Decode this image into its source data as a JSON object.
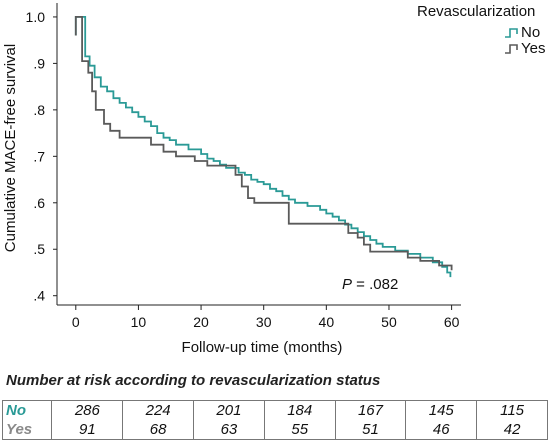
{
  "chart_data": {
    "type": "line",
    "step": true,
    "ylabel": "Cumulative MACE-free survival",
    "xlabel": "Follow-up time (months)",
    "xlim": [
      -3,
      61.5
    ],
    "ylim": [
      0.38,
      1.03
    ],
    "xticks": [
      0,
      10,
      20,
      30,
      40,
      50,
      60
    ],
    "xtick_labels": [
      "0",
      "10",
      "20",
      "30",
      "40",
      "50",
      "60"
    ],
    "yticks": [
      1.0,
      0.9,
      0.8,
      0.7,
      0.6,
      0.5,
      0.4
    ],
    "ytick_labels": [
      "1.0",
      ".9",
      ".8",
      ".7",
      ".6",
      ".5",
      ".4"
    ],
    "legend": {
      "title": "Revascularization",
      "position": "top-right"
    },
    "annotation": {
      "p_symbol": "P",
      "text": " = .082"
    },
    "series": [
      {
        "name": "No",
        "color": "#2a9a96",
        "points": [
          [
            0,
            0.96
          ],
          [
            0,
            1.0
          ],
          [
            1.5,
            1.0
          ],
          [
            1.5,
            0.915
          ],
          [
            2.2,
            0.915
          ],
          [
            2.2,
            0.895
          ],
          [
            3.0,
            0.895
          ],
          [
            3.0,
            0.87
          ],
          [
            4.0,
            0.87
          ],
          [
            4.0,
            0.85
          ],
          [
            5.0,
            0.85
          ],
          [
            5.0,
            0.84
          ],
          [
            6.0,
            0.84
          ],
          [
            6.0,
            0.825
          ],
          [
            7.0,
            0.825
          ],
          [
            7.0,
            0.815
          ],
          [
            8.0,
            0.815
          ],
          [
            8.0,
            0.805
          ],
          [
            9.0,
            0.805
          ],
          [
            9.0,
            0.795
          ],
          [
            10.0,
            0.795
          ],
          [
            10.0,
            0.785
          ],
          [
            11.0,
            0.785
          ],
          [
            11.0,
            0.775
          ],
          [
            12.0,
            0.775
          ],
          [
            12.0,
            0.765
          ],
          [
            13.0,
            0.765
          ],
          [
            13.0,
            0.75
          ],
          [
            14.0,
            0.75
          ],
          [
            14.0,
            0.74
          ],
          [
            15.0,
            0.74
          ],
          [
            15.0,
            0.735
          ],
          [
            16.0,
            0.735
          ],
          [
            16.0,
            0.725
          ],
          [
            18.0,
            0.725
          ],
          [
            18.0,
            0.715
          ],
          [
            20.0,
            0.715
          ],
          [
            20.0,
            0.705
          ],
          [
            21.0,
            0.705
          ],
          [
            21.0,
            0.695
          ],
          [
            22.0,
            0.695
          ],
          [
            22.0,
            0.69
          ],
          [
            23.0,
            0.69
          ],
          [
            23.0,
            0.682
          ],
          [
            24.0,
            0.682
          ],
          [
            24.0,
            0.675
          ],
          [
            26.0,
            0.675
          ],
          [
            26.0,
            0.665
          ],
          [
            27.0,
            0.665
          ],
          [
            27.0,
            0.66
          ],
          [
            28.0,
            0.66
          ],
          [
            28.0,
            0.65
          ],
          [
            29.0,
            0.65
          ],
          [
            29.0,
            0.645
          ],
          [
            30.0,
            0.645
          ],
          [
            30.0,
            0.64
          ],
          [
            31.0,
            0.64
          ],
          [
            31.0,
            0.63
          ],
          [
            32.0,
            0.63
          ],
          [
            32.0,
            0.625
          ],
          [
            33.0,
            0.625
          ],
          [
            33.0,
            0.615
          ],
          [
            34.0,
            0.615
          ],
          [
            34.0,
            0.607
          ],
          [
            35.0,
            0.607
          ],
          [
            35.0,
            0.6
          ],
          [
            37.0,
            0.6
          ],
          [
            37.0,
            0.593
          ],
          [
            39.0,
            0.593
          ],
          [
            39.0,
            0.585
          ],
          [
            40.0,
            0.585
          ],
          [
            40.0,
            0.577
          ],
          [
            41.0,
            0.577
          ],
          [
            41.0,
            0.57
          ],
          [
            42.0,
            0.57
          ],
          [
            42.0,
            0.562
          ],
          [
            43.0,
            0.562
          ],
          [
            43.0,
            0.553
          ],
          [
            44.0,
            0.553
          ],
          [
            44.0,
            0.545
          ],
          [
            45.0,
            0.545
          ],
          [
            45.0,
            0.537
          ],
          [
            46.0,
            0.537
          ],
          [
            46.0,
            0.528
          ],
          [
            47.0,
            0.528
          ],
          [
            47.0,
            0.52
          ],
          [
            48.0,
            0.52
          ],
          [
            48.0,
            0.512
          ],
          [
            49.0,
            0.512
          ],
          [
            49.0,
            0.505
          ],
          [
            51.0,
            0.505
          ],
          [
            51.0,
            0.497
          ],
          [
            53.0,
            0.497
          ],
          [
            53.0,
            0.49
          ],
          [
            55.0,
            0.49
          ],
          [
            55.0,
            0.482
          ],
          [
            57.0,
            0.482
          ],
          [
            57.0,
            0.472
          ],
          [
            58.5,
            0.472
          ],
          [
            58.5,
            0.462
          ],
          [
            59.3,
            0.462
          ],
          [
            59.3,
            0.45
          ],
          [
            59.8,
            0.45
          ],
          [
            59.8,
            0.44
          ]
        ]
      },
      {
        "name": "Yes",
        "color": "#5a5a5a",
        "points": [
          [
            0,
            0.96
          ],
          [
            0,
            1.0
          ],
          [
            1.0,
            1.0
          ],
          [
            1.0,
            0.905
          ],
          [
            2.0,
            0.905
          ],
          [
            2.0,
            0.88
          ],
          [
            2.6,
            0.88
          ],
          [
            2.6,
            0.84
          ],
          [
            3.2,
            0.84
          ],
          [
            3.2,
            0.8
          ],
          [
            4.5,
            0.8
          ],
          [
            4.5,
            0.77
          ],
          [
            5.5,
            0.77
          ],
          [
            5.5,
            0.755
          ],
          [
            7.0,
            0.755
          ],
          [
            7.0,
            0.74
          ],
          [
            12.0,
            0.74
          ],
          [
            12.0,
            0.725
          ],
          [
            14.0,
            0.725
          ],
          [
            14.0,
            0.71
          ],
          [
            16.0,
            0.71
          ],
          [
            16.0,
            0.7
          ],
          [
            19.0,
            0.7
          ],
          [
            19.0,
            0.69
          ],
          [
            21.0,
            0.69
          ],
          [
            21.0,
            0.68
          ],
          [
            25.5,
            0.68
          ],
          [
            25.5,
            0.66
          ],
          [
            26.5,
            0.66
          ],
          [
            26.5,
            0.635
          ],
          [
            27.5,
            0.635
          ],
          [
            27.5,
            0.61
          ],
          [
            28.5,
            0.61
          ],
          [
            28.5,
            0.6
          ],
          [
            34.0,
            0.6
          ],
          [
            34.0,
            0.555
          ],
          [
            43.5,
            0.555
          ],
          [
            43.5,
            0.535
          ],
          [
            45.0,
            0.535
          ],
          [
            45.0,
            0.525
          ],
          [
            46.0,
            0.525
          ],
          [
            46.0,
            0.51
          ],
          [
            47.0,
            0.51
          ],
          [
            47.0,
            0.495
          ],
          [
            53.0,
            0.495
          ],
          [
            53.0,
            0.482
          ],
          [
            55.0,
            0.482
          ],
          [
            55.0,
            0.475
          ],
          [
            58.0,
            0.475
          ],
          [
            58.0,
            0.465
          ],
          [
            60.0,
            0.465
          ],
          [
            60.0,
            0.455
          ]
        ]
      }
    ]
  },
  "risk_table": {
    "title": "Number at risk according to revascularization status",
    "rows": [
      {
        "group": "No",
        "color": "#2a9a96",
        "values": [
          "286",
          "224",
          "201",
          "184",
          "167",
          "145",
          "115"
        ]
      },
      {
        "group": "Yes",
        "color": "#8a8a8a",
        "values": [
          "91",
          "68",
          "63",
          "55",
          "51",
          "46",
          "42"
        ]
      }
    ]
  }
}
